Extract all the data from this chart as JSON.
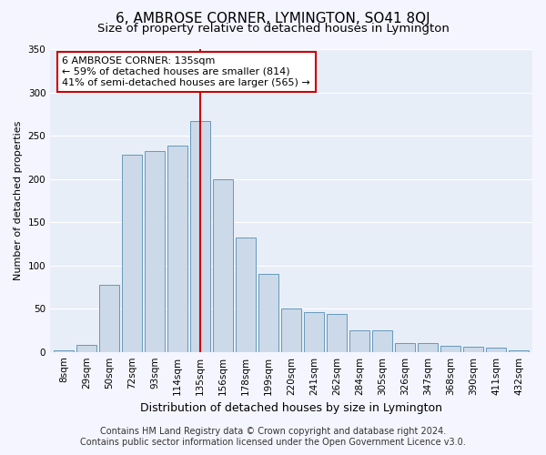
{
  "title": "6, AMBROSE CORNER, LYMINGTON, SO41 8QJ",
  "subtitle": "Size of property relative to detached houses in Lymington",
  "xlabel": "Distribution of detached houses by size in Lymington",
  "ylabel": "Number of detached properties",
  "categories": [
    "8sqm",
    "29sqm",
    "50sqm",
    "72sqm",
    "93sqm",
    "114sqm",
    "135sqm",
    "156sqm",
    "178sqm",
    "199sqm",
    "220sqm",
    "241sqm",
    "262sqm",
    "284sqm",
    "305sqm",
    "326sqm",
    "347sqm",
    "368sqm",
    "390sqm",
    "411sqm",
    "432sqm"
  ],
  "values": [
    2,
    8,
    77,
    228,
    232,
    238,
    267,
    200,
    132,
    90,
    50,
    46,
    44,
    25,
    25,
    10,
    10,
    7,
    6,
    5,
    2
  ],
  "highlight_index": 6,
  "bar_color": "#ccd9e8",
  "bar_edge_color": "#6699bb",
  "highlight_line_color": "#cc0000",
  "background_color": "#e8eef8",
  "fig_background_color": "#f5f5ff",
  "grid_color": "#ffffff",
  "annotation_line1": "6 AMBROSE CORNER: 135sqm",
  "annotation_line2": "← 59% of detached houses are smaller (814)",
  "annotation_line3": "41% of semi-detached houses are larger (565) →",
  "annotation_box_color": "#ffffff",
  "annotation_box_edge": "#cc0000",
  "footer_line1": "Contains HM Land Registry data © Crown copyright and database right 2024.",
  "footer_line2": "Contains public sector information licensed under the Open Government Licence v3.0.",
  "ylim": [
    0,
    350
  ],
  "yticks": [
    0,
    50,
    100,
    150,
    200,
    250,
    300,
    350
  ],
  "title_fontsize": 11,
  "subtitle_fontsize": 9.5,
  "xlabel_fontsize": 9,
  "ylabel_fontsize": 8,
  "tick_fontsize": 7.5,
  "footer_fontsize": 7,
  "annotation_fontsize": 8
}
